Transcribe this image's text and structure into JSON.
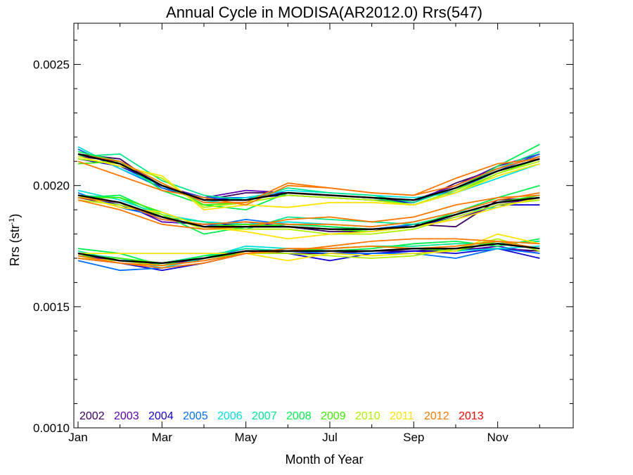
{
  "chart_data": {
    "type": "line",
    "title": "Annual Cycle in MODISA(AR2012.0) Rrs(547)",
    "xlabel": "Month of Year",
    "ylabel": "Rrs (str",
    "ylabel_sup": "-1",
    "ylabel_close": ")",
    "xlim": [
      0.9,
      12.8
    ],
    "ylim": [
      0.001,
      0.00267
    ],
    "xticks": [
      {
        "label": "Jan",
        "value": 1
      },
      {
        "label": "Mar",
        "value": 3
      },
      {
        "label": "May",
        "value": 5
      },
      {
        "label": "Jul",
        "value": 7
      },
      {
        "label": "Sep",
        "value": 9
      },
      {
        "label": "Nov",
        "value": 11
      }
    ],
    "yticks": [
      {
        "label": "0.0010",
        "value": 0.001
      },
      {
        "label": "0.0015",
        "value": 0.0015
      },
      {
        "label": "0.0020",
        "value": 0.002
      },
      {
        "label": "0.0025",
        "value": 0.0025
      }
    ],
    "grid": false,
    "legend_position": "bottom-left",
    "x": [
      1,
      2,
      3,
      4,
      5,
      6,
      7,
      8,
      9,
      10,
      11,
      12
    ],
    "legend": [
      {
        "name": "2002",
        "color": "#3b0060"
      },
      {
        "name": "2003",
        "color": "#5a00b4"
      },
      {
        "name": "2004",
        "color": "#0f00d8"
      },
      {
        "name": "2005",
        "color": "#0070ff"
      },
      {
        "name": "2006",
        "color": "#00e0e0"
      },
      {
        "name": "2007",
        "color": "#00e890"
      },
      {
        "name": "2008",
        "color": "#00f050"
      },
      {
        "name": "2009",
        "color": "#40f000"
      },
      {
        "name": "2010",
        "color": "#b0f000"
      },
      {
        "name": "2011",
        "color": "#ffe400"
      },
      {
        "name": "2012",
        "color": "#ff7800"
      },
      {
        "name": "2013",
        "color": "#ff0000"
      }
    ],
    "series": [
      {
        "color": "#3b0060",
        "values": [
          0.00213,
          0.00211,
          0.00199,
          0.00194,
          0.00197,
          0.00197,
          0.00196,
          0.00195,
          0.00193,
          0.00201,
          0.00207,
          0.00212
        ]
      },
      {
        "color": "#5a00b4",
        "values": [
          0.00212,
          0.0021,
          0.002,
          0.00195,
          0.00198,
          0.00197,
          0.00196,
          0.00195,
          0.00194,
          0.002,
          0.00208,
          0.00213
        ]
      },
      {
        "color": "#0f00d8",
        "values": [
          0.00211,
          0.00208,
          0.002,
          0.00194,
          0.00195,
          0.00196,
          0.00195,
          0.00194,
          0.00193,
          0.00199,
          0.00207,
          0.00212
        ]
      },
      {
        "color": "#0070ff",
        "values": [
          0.00215,
          0.00207,
          0.00199,
          0.00195,
          0.00195,
          0.00197,
          0.00196,
          0.00195,
          0.00194,
          0.00198,
          0.00206,
          0.00213
        ]
      },
      {
        "color": "#00e0e0",
        "values": [
          0.00216,
          0.00207,
          0.002,
          0.00193,
          0.00195,
          0.00198,
          0.00197,
          0.00196,
          0.00195,
          0.00197,
          0.00203,
          0.00209
        ]
      },
      {
        "color": "#00e890",
        "values": [
          0.00212,
          0.00213,
          0.00202,
          0.00196,
          0.00194,
          0.00199,
          0.00197,
          0.00196,
          0.00193,
          0.00199,
          0.00207,
          0.00214
        ]
      },
      {
        "color": "#00f050",
        "values": [
          0.00214,
          0.0021,
          0.00198,
          0.00192,
          0.0019,
          0.00197,
          0.00196,
          0.00195,
          0.00192,
          0.00198,
          0.00208,
          0.00217
        ]
      },
      {
        "color": "#40f000",
        "values": [
          0.00209,
          0.0021,
          0.00201,
          0.00192,
          0.00193,
          0.00196,
          0.00195,
          0.00194,
          0.00192,
          0.00197,
          0.00205,
          0.00211
        ]
      },
      {
        "color": "#b0f000",
        "values": [
          0.00211,
          0.00209,
          0.00203,
          0.00191,
          0.00193,
          0.00196,
          0.00195,
          0.00194,
          0.00192,
          0.00198,
          0.00205,
          0.0021
        ]
      },
      {
        "color": "#ffe400",
        "values": [
          0.00212,
          0.00208,
          0.00204,
          0.0019,
          0.00192,
          0.00191,
          0.00193,
          0.00193,
          0.00192,
          0.00197,
          0.00204,
          0.00209
        ]
      },
      {
        "color": "#ff7800",
        "values": [
          0.0021,
          0.00204,
          0.00198,
          0.00195,
          0.00192,
          0.002,
          0.00199,
          0.00197,
          0.00196,
          0.00203,
          0.00209,
          0.00211
        ]
      },
      {
        "color": "#ff7800",
        "values": [
          0.00213,
          0.0021,
          0.00201,
          0.00193,
          0.00193,
          0.00201,
          0.00199,
          0.00197,
          0.00196,
          0.002,
          0.00207,
          0.00212
        ]
      },
      {
        "color": "#000000",
        "width": 2.4,
        "values": [
          0.00213,
          0.00209,
          0.002,
          0.00194,
          0.00194,
          0.00197,
          0.00196,
          0.00195,
          0.00194,
          0.00199,
          0.00206,
          0.00211
        ]
      },
      {
        "color": "#3b0060",
        "values": [
          0.00195,
          0.00192,
          0.00187,
          0.00183,
          0.00184,
          0.00183,
          0.00181,
          0.00181,
          0.00184,
          0.00183,
          0.00194,
          0.00195
        ]
      },
      {
        "color": "#5a00b4",
        "values": [
          0.00196,
          0.00193,
          0.00185,
          0.00184,
          0.00185,
          0.00183,
          0.00182,
          0.00181,
          0.00183,
          0.00186,
          0.00192,
          0.00195
        ]
      },
      {
        "color": "#0f00d8",
        "values": [
          0.00196,
          0.00192,
          0.00186,
          0.00184,
          0.00184,
          0.00183,
          0.00182,
          0.00182,
          0.00183,
          0.00187,
          0.00192,
          0.00192
        ]
      },
      {
        "color": "#0070ff",
        "values": [
          0.00197,
          0.00191,
          0.00187,
          0.00183,
          0.00186,
          0.00184,
          0.00183,
          0.00182,
          0.00184,
          0.00188,
          0.00193,
          0.00196
        ]
      },
      {
        "color": "#00e0e0",
        "values": [
          0.00198,
          0.00194,
          0.00188,
          0.00185,
          0.00184,
          0.00185,
          0.00184,
          0.00183,
          0.00185,
          0.00189,
          0.00191,
          0.00195
        ]
      },
      {
        "color": "#00e890",
        "values": [
          0.00196,
          0.00195,
          0.00187,
          0.00185,
          0.00182,
          0.00187,
          0.00186,
          0.00185,
          0.00184,
          0.00188,
          0.00193,
          0.00196
        ]
      },
      {
        "color": "#00f050",
        "values": [
          0.00195,
          0.00196,
          0.00188,
          0.0018,
          0.00183,
          0.00184,
          0.00183,
          0.00182,
          0.00183,
          0.00189,
          0.00195,
          0.002
        ]
      },
      {
        "color": "#40f000",
        "values": [
          0.00195,
          0.00195,
          0.00189,
          0.00183,
          0.00184,
          0.00183,
          0.00182,
          0.00181,
          0.00183,
          0.00188,
          0.00193,
          0.00196
        ]
      },
      {
        "color": "#b0f000",
        "values": [
          0.00194,
          0.00192,
          0.00188,
          0.00182,
          0.00182,
          0.00182,
          0.0018,
          0.0018,
          0.00182,
          0.00187,
          0.00192,
          0.00194
        ]
      },
      {
        "color": "#ffe400",
        "values": [
          0.00196,
          0.00191,
          0.00189,
          0.00183,
          0.00181,
          0.00178,
          0.0018,
          0.00181,
          0.00183,
          0.00186,
          0.00191,
          0.00195
        ]
      },
      {
        "color": "#ff7800",
        "values": [
          0.00194,
          0.0019,
          0.00184,
          0.00182,
          0.00183,
          0.00186,
          0.00187,
          0.00185,
          0.00187,
          0.00192,
          0.00195,
          0.00196
        ]
      },
      {
        "color": "#ff7800",
        "values": [
          0.00195,
          0.00193,
          0.00186,
          0.00184,
          0.00185,
          0.00184,
          0.00184,
          0.00183,
          0.00185,
          0.00189,
          0.00194,
          0.00197
        ]
      },
      {
        "color": "#000000",
        "width": 2.4,
        "values": [
          0.00196,
          0.00193,
          0.00187,
          0.00183,
          0.00183,
          0.00183,
          0.00182,
          0.00182,
          0.00183,
          0.00188,
          0.00193,
          0.00195
        ]
      },
      {
        "color": "#3b0060",
        "values": [
          0.00172,
          0.0017,
          0.00167,
          0.0017,
          0.00173,
          0.00172,
          0.00172,
          0.00173,
          0.00173,
          0.00174,
          0.00174,
          0.00173
        ]
      },
      {
        "color": "#5a00b4",
        "values": [
          0.00171,
          0.00169,
          0.00168,
          0.00169,
          0.00172,
          0.00173,
          0.00172,
          0.00172,
          0.00173,
          0.00173,
          0.00175,
          0.00172
        ]
      },
      {
        "color": "#0f00d8",
        "values": [
          0.0017,
          0.00168,
          0.00165,
          0.00168,
          0.00172,
          0.00172,
          0.00169,
          0.00172,
          0.00173,
          0.00172,
          0.00174,
          0.0017
        ]
      },
      {
        "color": "#0070ff",
        "values": [
          0.00169,
          0.00165,
          0.00166,
          0.0017,
          0.00174,
          0.00173,
          0.00172,
          0.00172,
          0.00172,
          0.0017,
          0.00174,
          0.00172
        ]
      },
      {
        "color": "#00e0e0",
        "values": [
          0.00172,
          0.0017,
          0.00166,
          0.0017,
          0.00175,
          0.00174,
          0.00173,
          0.00173,
          0.00174,
          0.00173,
          0.00174,
          0.00175
        ]
      },
      {
        "color": "#00e890",
        "values": [
          0.00173,
          0.00169,
          0.00168,
          0.00171,
          0.00174,
          0.00173,
          0.00174,
          0.00175,
          0.00175,
          0.00176,
          0.00176,
          0.00177
        ]
      },
      {
        "color": "#00f050",
        "values": [
          0.00174,
          0.00172,
          0.00167,
          0.00171,
          0.00172,
          0.00173,
          0.00173,
          0.00174,
          0.00176,
          0.00177,
          0.00175,
          0.00178
        ]
      },
      {
        "color": "#40f000",
        "values": [
          0.00171,
          0.0017,
          0.00168,
          0.0017,
          0.00172,
          0.00173,
          0.00174,
          0.00175,
          0.00174,
          0.00173,
          0.00177,
          0.00174
        ]
      },
      {
        "color": "#b0f000",
        "values": [
          0.0017,
          0.00169,
          0.00167,
          0.00169,
          0.00172,
          0.00172,
          0.00171,
          0.0017,
          0.00171,
          0.00174,
          0.00178,
          0.00173
        ]
      },
      {
        "color": "#ffe400",
        "values": [
          0.00172,
          0.00172,
          0.00172,
          0.00172,
          0.00172,
          0.00169,
          0.00172,
          0.00171,
          0.00172,
          0.00173,
          0.0018,
          0.00176
        ]
      },
      {
        "color": "#ff7800",
        "values": [
          0.0017,
          0.00168,
          0.00166,
          0.00168,
          0.00172,
          0.00173,
          0.00175,
          0.00177,
          0.00178,
          0.00178,
          0.00177,
          0.00176
        ]
      },
      {
        "color": "#ff7800",
        "values": [
          0.00171,
          0.00168,
          0.00167,
          0.00169,
          0.00172,
          0.00174,
          0.00174,
          0.00175,
          0.00174,
          0.00175,
          0.00177,
          0.00174
        ]
      },
      {
        "color": "#000000",
        "width": 2.4,
        "values": [
          0.00172,
          0.00169,
          0.00168,
          0.0017,
          0.00173,
          0.00173,
          0.00173,
          0.00173,
          0.00174,
          0.00174,
          0.00176,
          0.00174
        ]
      }
    ]
  }
}
